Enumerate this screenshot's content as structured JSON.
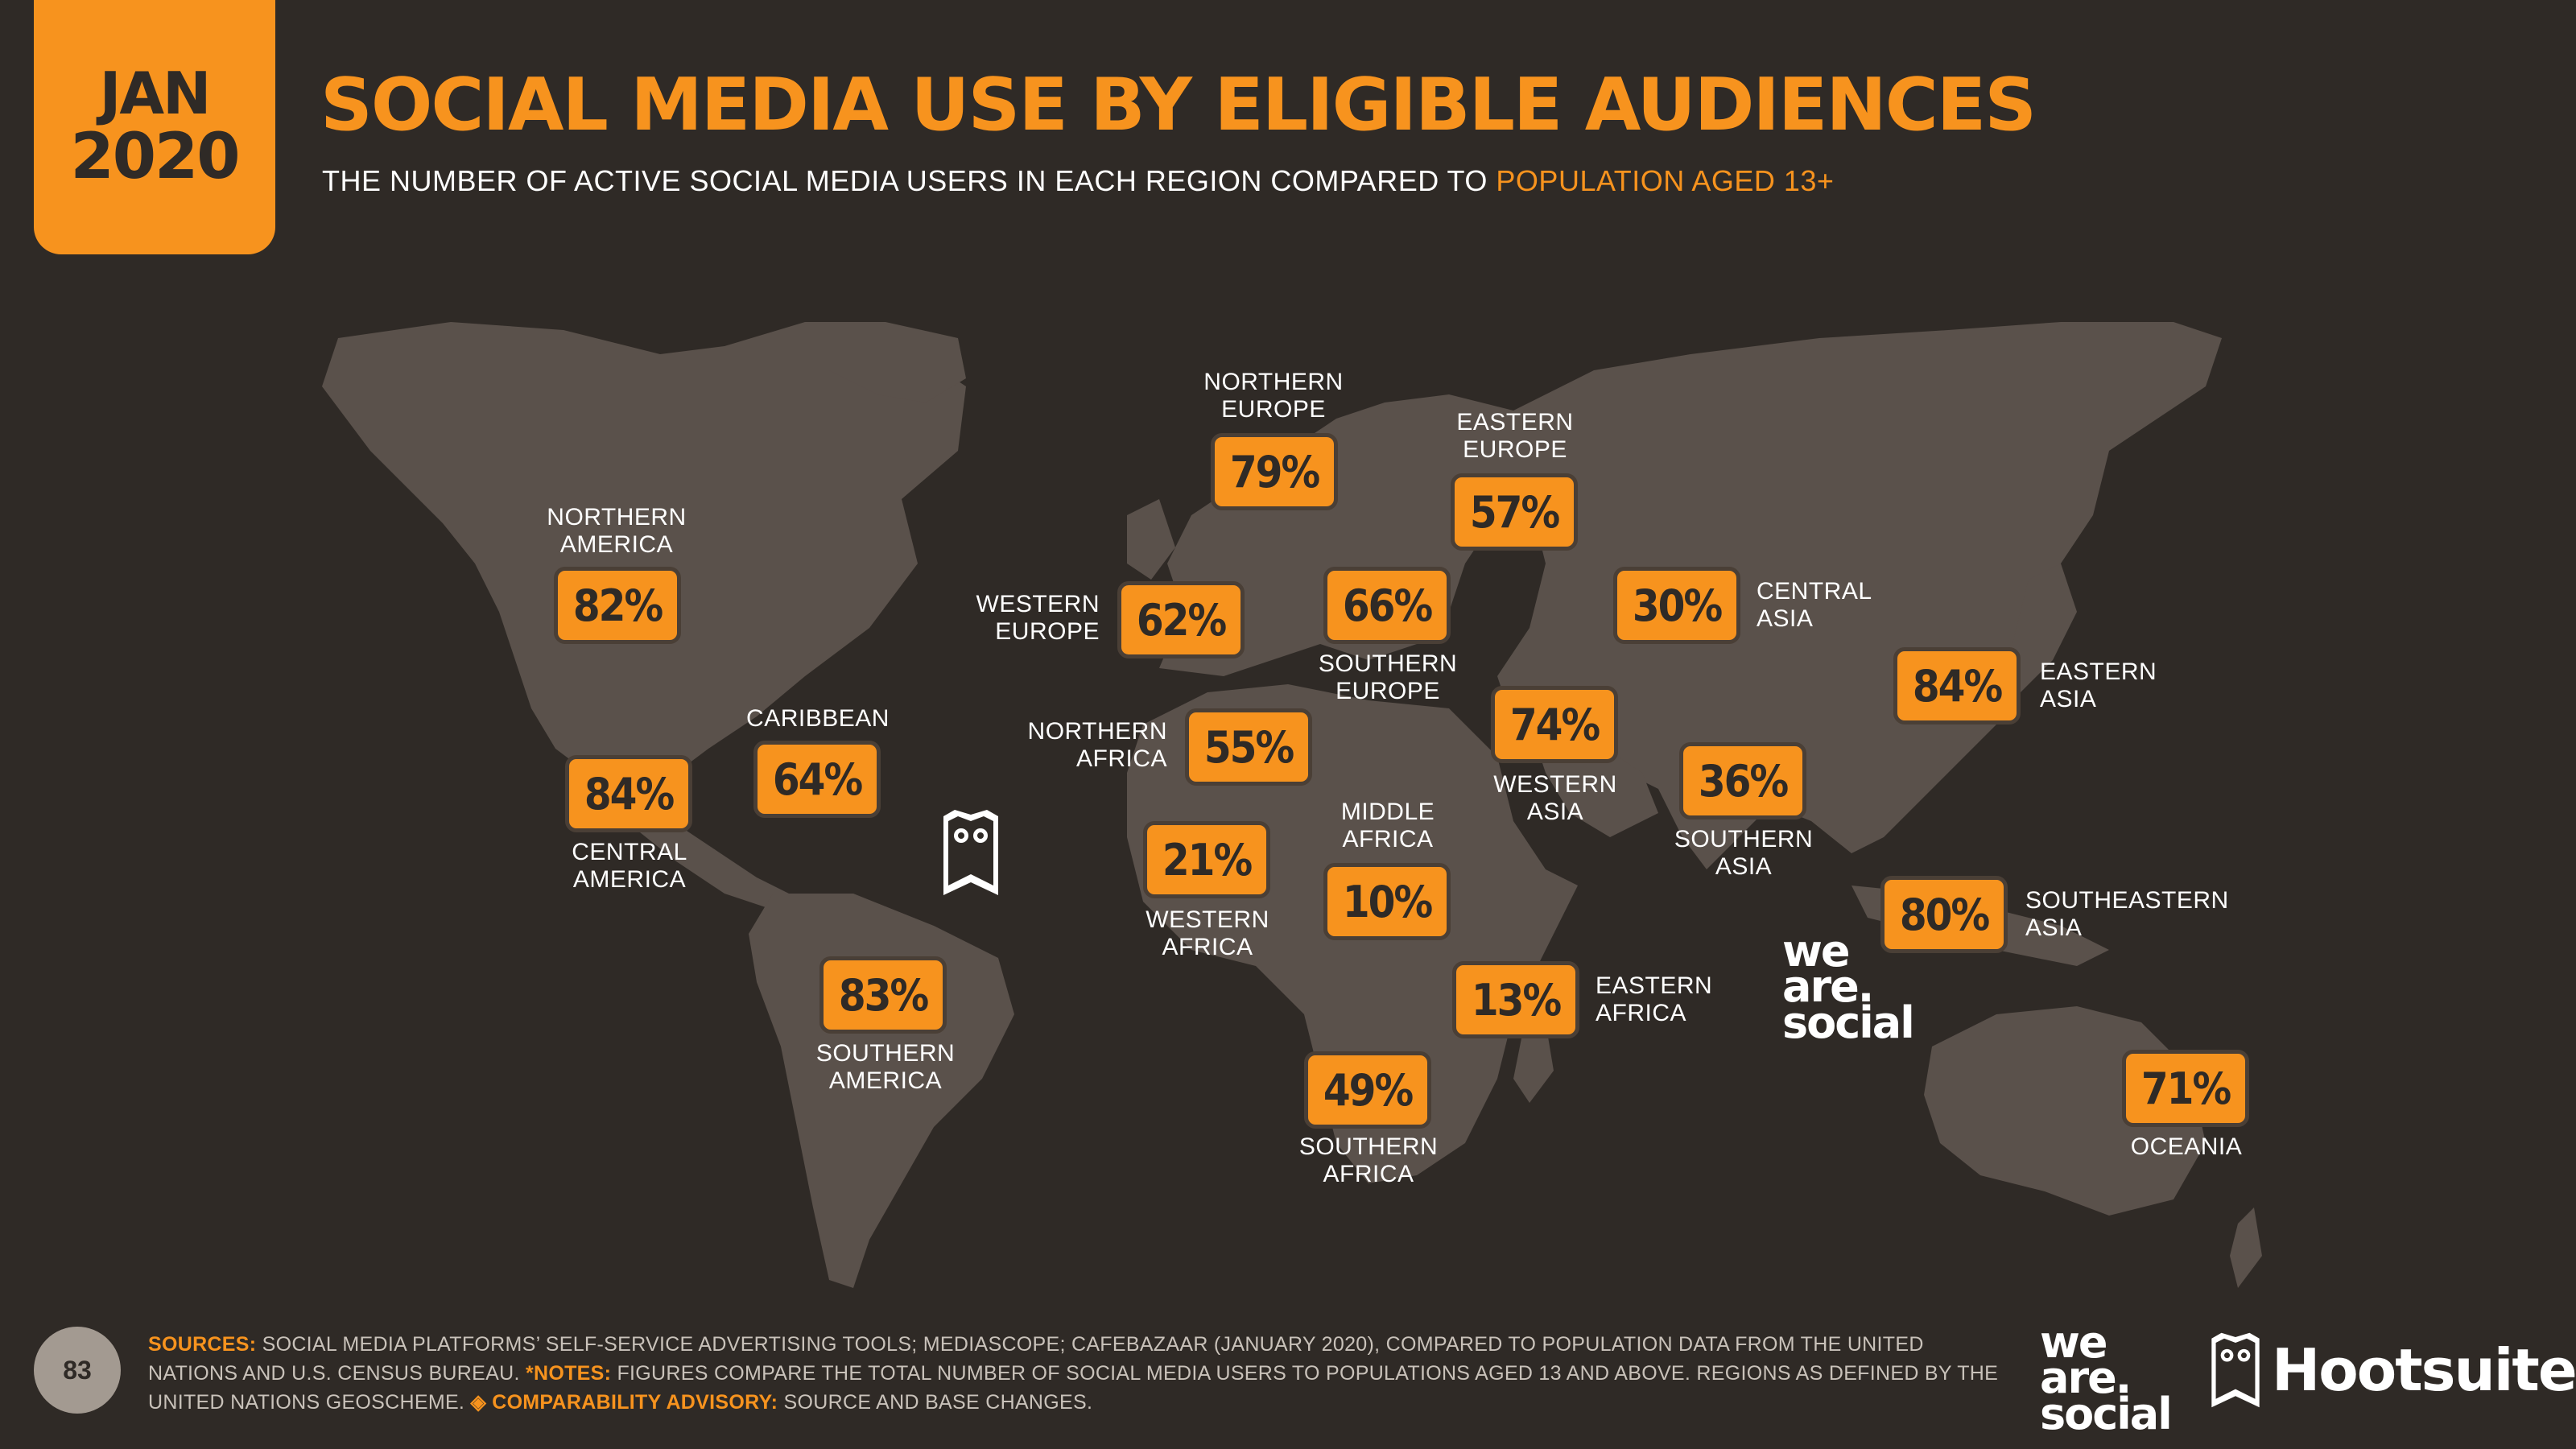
{
  "header": {
    "month": "JAN",
    "year": "2020",
    "title": "SOCIAL MEDIA USE BY ELIGIBLE AUDIENCES",
    "subtitle": "THE NUMBER OF ACTIVE SOCIAL MEDIA USERS IN EACH REGION COMPARED TO",
    "subtitle_accent": "POPULATION AGED 13+"
  },
  "regions": [
    {
      "id": "northern-america",
      "label": [
        "NORTHERN",
        "AMERICA"
      ],
      "value": "82%"
    },
    {
      "id": "central-america",
      "label": [
        "CENTRAL",
        "AMERICA"
      ],
      "value": "84%"
    },
    {
      "id": "caribbean",
      "label": [
        "CARIBBEAN"
      ],
      "value": "64%"
    },
    {
      "id": "southern-america",
      "label": [
        "SOUTHERN",
        "AMERICA"
      ],
      "value": "83%"
    },
    {
      "id": "northern-europe",
      "label": [
        "NORTHERN",
        "EUROPE"
      ],
      "value": "79%"
    },
    {
      "id": "western-europe",
      "label": [
        "WESTERN",
        "EUROPE"
      ],
      "value": "62%"
    },
    {
      "id": "southern-europe",
      "label": [
        "SOUTHERN",
        "EUROPE"
      ],
      "value": "66%"
    },
    {
      "id": "eastern-europe",
      "label": [
        "EASTERN",
        "EUROPE"
      ],
      "value": "57%"
    },
    {
      "id": "northern-africa",
      "label": [
        "NORTHERN",
        "AFRICA"
      ],
      "value": "55%"
    },
    {
      "id": "western-africa",
      "label": [
        "WESTERN",
        "AFRICA"
      ],
      "value": "21%"
    },
    {
      "id": "middle-africa",
      "label": [
        "MIDDLE",
        "AFRICA"
      ],
      "value": "10%"
    },
    {
      "id": "eastern-africa",
      "label": [
        "EASTERN",
        "AFRICA"
      ],
      "value": "13%"
    },
    {
      "id": "southern-africa",
      "label": [
        "SOUTHERN",
        "AFRICA"
      ],
      "value": "49%"
    },
    {
      "id": "western-asia",
      "label": [
        "WESTERN",
        "ASIA"
      ],
      "value": "74%"
    },
    {
      "id": "central-asia",
      "label": [
        "CENTRAL",
        "ASIA"
      ],
      "value": "30%"
    },
    {
      "id": "southern-asia",
      "label": [
        "SOUTHERN",
        "ASIA"
      ],
      "value": "36%"
    },
    {
      "id": "eastern-asia",
      "label": [
        "EASTERN",
        "ASIA"
      ],
      "value": "84%"
    },
    {
      "id": "southeastern-asia",
      "label": [
        "SOUTHEASTERN",
        "ASIA"
      ],
      "value": "80%"
    },
    {
      "id": "oceania",
      "label": [
        "OCEANIA"
      ],
      "value": "71%"
    }
  ],
  "footer": {
    "page_number": "83",
    "sources_label": "SOURCES:",
    "sources_text": "SOCIAL MEDIA PLATFORMS’ SELF-SERVICE ADVERTISING TOOLS; MEDIASCOPE; CAFEBAZAAR (JANUARY 2020), COMPARED TO POPULATION DATA FROM THE UNITED NATIONS AND U.S. CENSUS BUREAU.",
    "notes_label": "*NOTES:",
    "notes_text": "FIGURES COMPARE THE TOTAL NUMBER OF SOCIAL MEDIA USERS TO POPULATIONS AGED 13 AND ABOVE. REGIONS AS DEFINED BY THE UNITED NATIONS GEOSCHEME.",
    "advisory_label": "◈ COMPARABILITY ADVISORY:",
    "advisory_text": "SOURCE AND BASE CHANGES.",
    "logo_we_are_social": [
      "we",
      "are.",
      "social"
    ],
    "logo_hootsuite": "Hootsuite"
  },
  "colors": {
    "background": "#2f2a26",
    "accent": "#f7931e",
    "land": "#5a514b",
    "text": "#ffffff"
  }
}
